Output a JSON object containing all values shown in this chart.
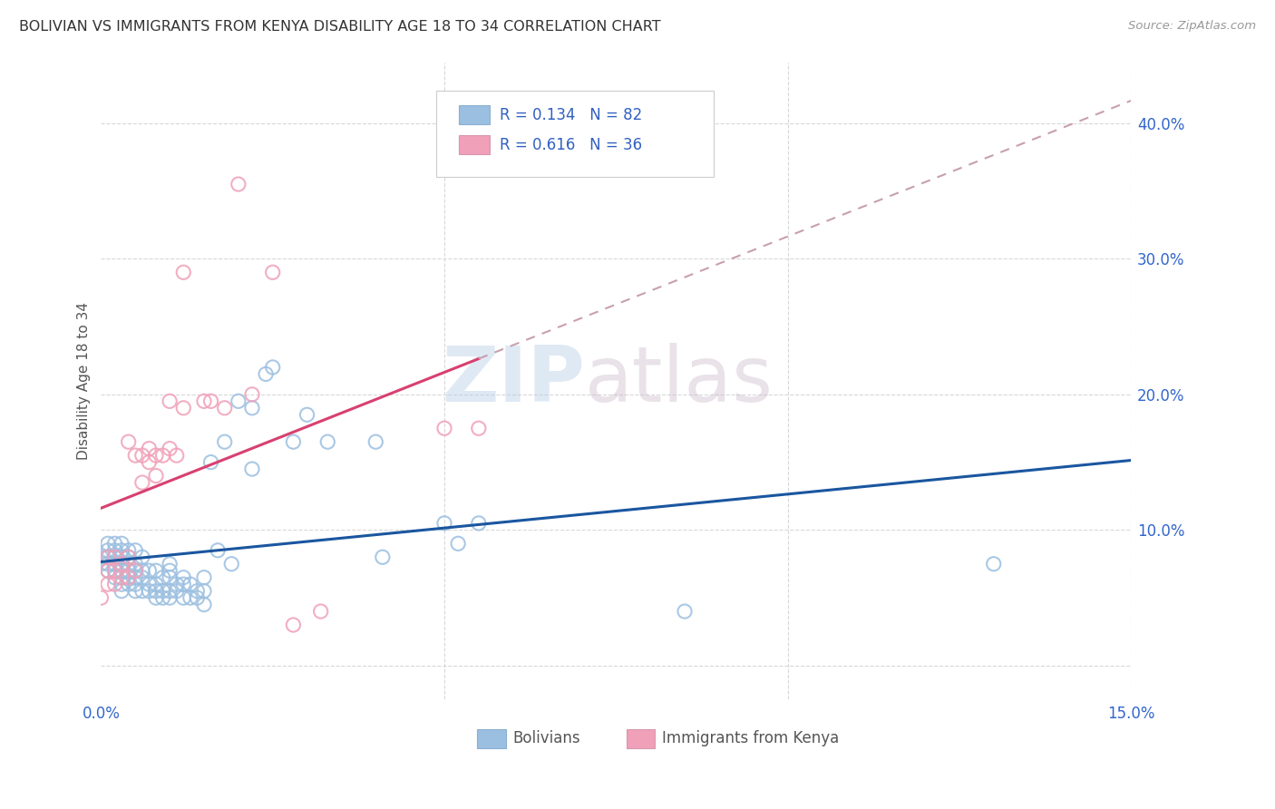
{
  "title": "BOLIVIAN VS IMMIGRANTS FROM KENYA DISABILITY AGE 18 TO 34 CORRELATION CHART",
  "source": "Source: ZipAtlas.com",
  "ylabel": "Disability Age 18 to 34",
  "watermark": "ZIPatlas",
  "xlim": [
    0.0,
    0.15
  ],
  "ylim": [
    -0.025,
    0.445
  ],
  "yticks_right": [
    0.0,
    0.1,
    0.2,
    0.3,
    0.4
  ],
  "ytick_labels_right": [
    "",
    "10.0%",
    "20.0%",
    "30.0%",
    "40.0%"
  ],
  "bolivians_color": "#9bbfe0",
  "bolivia_edge_color": "#7aa8d8",
  "kenya_color": "#f0a0b8",
  "kenya_edge_color": "#e080a0",
  "trend_bolivians_color": "#1a56a0",
  "trend_kenya_color": "#d84070",
  "trend_kenya_ext_color": "#c8a0b0",
  "R_bolivians": 0.134,
  "N_bolivians": 82,
  "R_kenya": 0.616,
  "N_kenya": 36,
  "legend_label_1": "Bolivians",
  "legend_label_2": "Immigrants from Kenya",
  "legend_text_color": "#3060c0",
  "background_color": "#ffffff",
  "grid_color": "#d8d8d8",
  "bolivians_x": [
    0.0,
    0.0,
    0.001,
    0.001,
    0.001,
    0.001,
    0.001,
    0.002,
    0.002,
    0.002,
    0.002,
    0.002,
    0.002,
    0.003,
    0.003,
    0.003,
    0.003,
    0.003,
    0.003,
    0.003,
    0.004,
    0.004,
    0.004,
    0.004,
    0.004,
    0.004,
    0.005,
    0.005,
    0.005,
    0.005,
    0.005,
    0.005,
    0.006,
    0.006,
    0.006,
    0.006,
    0.007,
    0.007,
    0.007,
    0.008,
    0.008,
    0.008,
    0.008,
    0.009,
    0.009,
    0.009,
    0.01,
    0.01,
    0.01,
    0.01,
    0.01,
    0.011,
    0.011,
    0.012,
    0.012,
    0.012,
    0.013,
    0.013,
    0.014,
    0.014,
    0.015,
    0.015,
    0.015,
    0.016,
    0.017,
    0.018,
    0.019,
    0.02,
    0.022,
    0.022,
    0.024,
    0.025,
    0.028,
    0.03,
    0.033,
    0.04,
    0.041,
    0.05,
    0.052,
    0.055,
    0.085,
    0.13
  ],
  "bolivians_y": [
    0.075,
    0.08,
    0.07,
    0.075,
    0.08,
    0.085,
    0.09,
    0.065,
    0.07,
    0.075,
    0.08,
    0.085,
    0.09,
    0.055,
    0.06,
    0.07,
    0.075,
    0.08,
    0.085,
    0.09,
    0.06,
    0.065,
    0.07,
    0.075,
    0.08,
    0.085,
    0.055,
    0.06,
    0.065,
    0.07,
    0.075,
    0.085,
    0.055,
    0.065,
    0.07,
    0.08,
    0.055,
    0.06,
    0.07,
    0.05,
    0.055,
    0.06,
    0.07,
    0.05,
    0.055,
    0.065,
    0.05,
    0.055,
    0.065,
    0.07,
    0.075,
    0.055,
    0.06,
    0.05,
    0.06,
    0.065,
    0.05,
    0.06,
    0.05,
    0.055,
    0.045,
    0.055,
    0.065,
    0.15,
    0.085,
    0.165,
    0.075,
    0.195,
    0.145,
    0.19,
    0.215,
    0.22,
    0.165,
    0.185,
    0.165,
    0.165,
    0.08,
    0.105,
    0.09,
    0.105,
    0.04,
    0.075
  ],
  "kenya_x": [
    0.0,
    0.001,
    0.001,
    0.001,
    0.002,
    0.002,
    0.002,
    0.003,
    0.003,
    0.004,
    0.004,
    0.004,
    0.005,
    0.005,
    0.006,
    0.006,
    0.007,
    0.007,
    0.008,
    0.008,
    0.009,
    0.01,
    0.01,
    0.011,
    0.012,
    0.012,
    0.015,
    0.016,
    0.018,
    0.02,
    0.022,
    0.025,
    0.028,
    0.032,
    0.05,
    0.055
  ],
  "kenya_y": [
    0.05,
    0.06,
    0.07,
    0.08,
    0.06,
    0.07,
    0.08,
    0.065,
    0.075,
    0.065,
    0.08,
    0.165,
    0.07,
    0.155,
    0.135,
    0.155,
    0.15,
    0.16,
    0.14,
    0.155,
    0.155,
    0.16,
    0.195,
    0.155,
    0.19,
    0.29,
    0.195,
    0.195,
    0.19,
    0.355,
    0.2,
    0.29,
    0.03,
    0.04,
    0.175,
    0.175
  ]
}
